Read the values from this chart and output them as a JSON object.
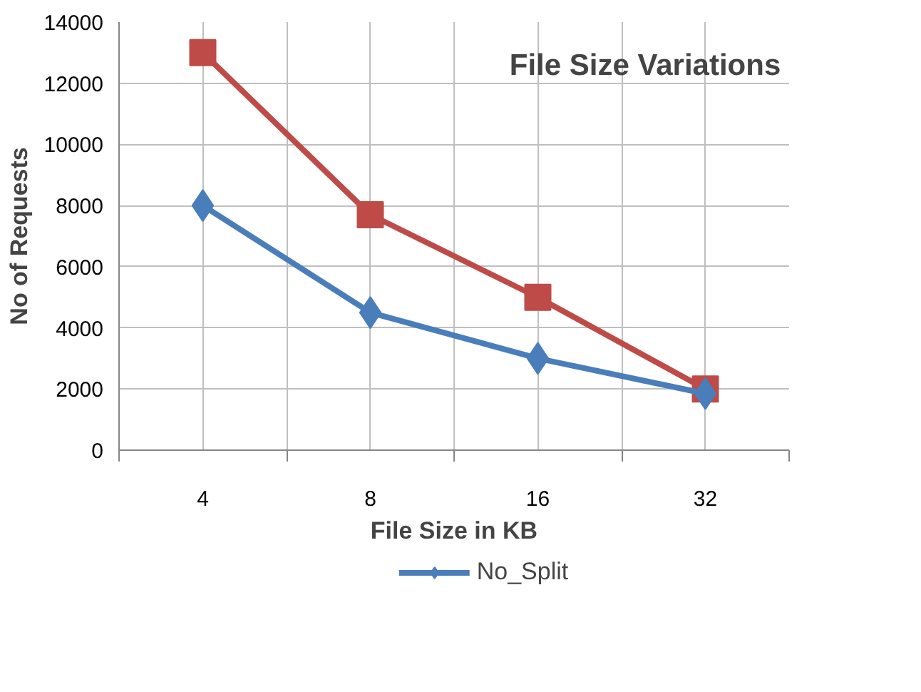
{
  "chart_data": {
    "type": "line",
    "title": "File Size Variations",
    "xlabel": "File Size in KB",
    "ylabel": "No of Requests",
    "categories": [
      "4",
      "8",
      "16",
      "32"
    ],
    "series": [
      {
        "name": "No_Split",
        "color": "#4a7ebb",
        "marker": "diamond",
        "values": [
          8000,
          4500,
          3000,
          1850
        ]
      },
      {
        "color": "#be4b48",
        "marker": "square",
        "values": [
          13000,
          7700,
          5000,
          2000
        ]
      }
    ],
    "ylim": [
      0,
      14000
    ],
    "yticks": [
      0,
      2000,
      4000,
      6000,
      8000,
      10000,
      12000,
      14000
    ],
    "grid": true,
    "legend": "bottom"
  }
}
